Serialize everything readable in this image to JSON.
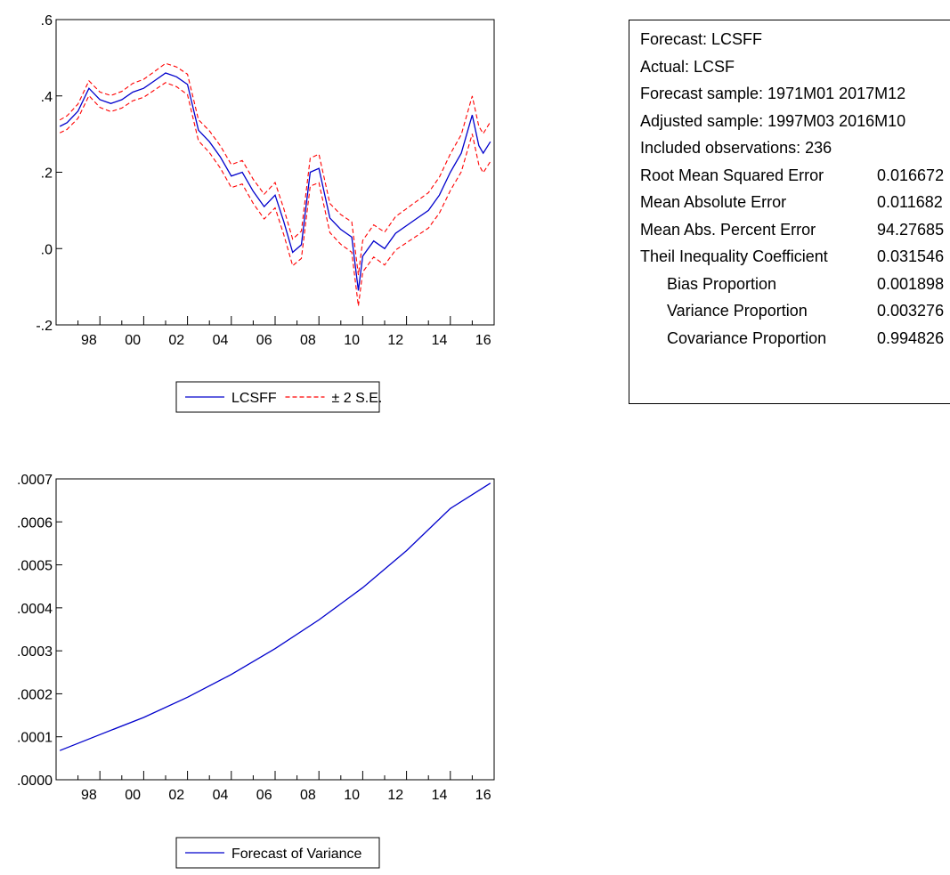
{
  "chart_data": [
    {
      "type": "line",
      "x_ticks": [
        "98",
        "00",
        "02",
        "04",
        "06",
        "08",
        "10",
        "12",
        "14",
        "16"
      ],
      "y_ticks": [
        ".6",
        ".4",
        ".2",
        ".0",
        "-.2"
      ],
      "ylim": [
        -0.2,
        0.6
      ],
      "xlim": [
        1997.0,
        2017.0
      ],
      "grid": false,
      "legend_position": "bottom-center",
      "series": [
        {
          "name": "LCSFF",
          "color": "#0000cc",
          "x": [
            1997.17,
            1997.5,
            1998.0,
            1998.5,
            1999.0,
            1999.5,
            2000.0,
            2000.5,
            2001.0,
            2001.5,
            2002.0,
            2002.5,
            2003.0,
            2003.5,
            2004.0,
            2004.5,
            2005.0,
            2005.5,
            2006.0,
            2006.5,
            2007.0,
            2007.4,
            2007.8,
            2008.2,
            2008.6,
            2009.0,
            2009.5,
            2010.0,
            2010.5,
            2010.8,
            2011.0,
            2011.5,
            2012.0,
            2012.5,
            2013.0,
            2013.5,
            2014.0,
            2014.5,
            2015.0,
            2015.5,
            2016.0,
            2016.3,
            2016.5,
            2016.83
          ],
          "values": [
            0.32,
            0.33,
            0.36,
            0.42,
            0.39,
            0.38,
            0.39,
            0.41,
            0.42,
            0.44,
            0.46,
            0.45,
            0.43,
            0.31,
            0.28,
            0.24,
            0.19,
            0.2,
            0.15,
            0.11,
            0.14,
            0.07,
            -0.01,
            0.01,
            0.2,
            0.21,
            0.08,
            0.05,
            0.03,
            -0.11,
            -0.02,
            0.02,
            0.0,
            0.04,
            0.06,
            0.08,
            0.1,
            0.14,
            0.2,
            0.25,
            0.35,
            0.27,
            0.25,
            0.28
          ]
        },
        {
          "name": "± 2 S.E.",
          "color": "#ff0000",
          "dashed": true,
          "band_half_width_start": 0.017,
          "band_half_width_end": 0.052
        }
      ]
    },
    {
      "type": "line",
      "x_ticks": [
        "98",
        "00",
        "02",
        "04",
        "06",
        "08",
        "10",
        "12",
        "14",
        "16"
      ],
      "y_ticks": [
        ".0007",
        ".0006",
        ".0005",
        ".0004",
        ".0003",
        ".0002",
        ".0001",
        ".0000"
      ],
      "ylim": [
        0.0,
        0.0007
      ],
      "xlim": [
        1997.0,
        2017.0
      ],
      "grid": false,
      "legend_position": "bottom-center",
      "series": [
        {
          "name": "Forecast of Variance",
          "color": "#0000cc",
          "x": [
            1997.17,
            1999.0,
            2001.0,
            2003.0,
            2005.0,
            2007.0,
            2009.0,
            2011.0,
            2013.0,
            2015.0,
            2016.83
          ],
          "values": [
            6.8e-05,
            0.000105,
            0.000145,
            0.000192,
            0.000245,
            0.000305,
            0.000372,
            0.000447,
            0.000533,
            0.000631,
            0.00069
          ]
        }
      ]
    }
  ],
  "stats": {
    "rows": [
      {
        "label": "Forecast: LCSFF",
        "value": ""
      },
      {
        "label": "Actual: LCSF",
        "value": ""
      },
      {
        "label": "Forecast sample: 1971M01 2017M12",
        "value": ""
      },
      {
        "label": "Adjusted sample: 1997M03 2016M10",
        "value": ""
      },
      {
        "label": "Included observations: 236",
        "value": ""
      },
      {
        "label": "Root Mean Squared Error",
        "value": "0.016672"
      },
      {
        "label": "Mean Absolute Error",
        "value": "0.011682"
      },
      {
        "label": "Mean Abs. Percent Error",
        "value": "94.27685"
      },
      {
        "label": "Theil Inequality Coefficient",
        "value": "0.031546"
      },
      {
        "label": "Bias Proportion",
        "value": "0.001898",
        "indent": true
      },
      {
        "label": "Variance Proportion",
        "value": "0.003276",
        "indent": true
      },
      {
        "label": "Covariance Proportion",
        "value": "0.994826",
        "indent": true
      }
    ]
  }
}
